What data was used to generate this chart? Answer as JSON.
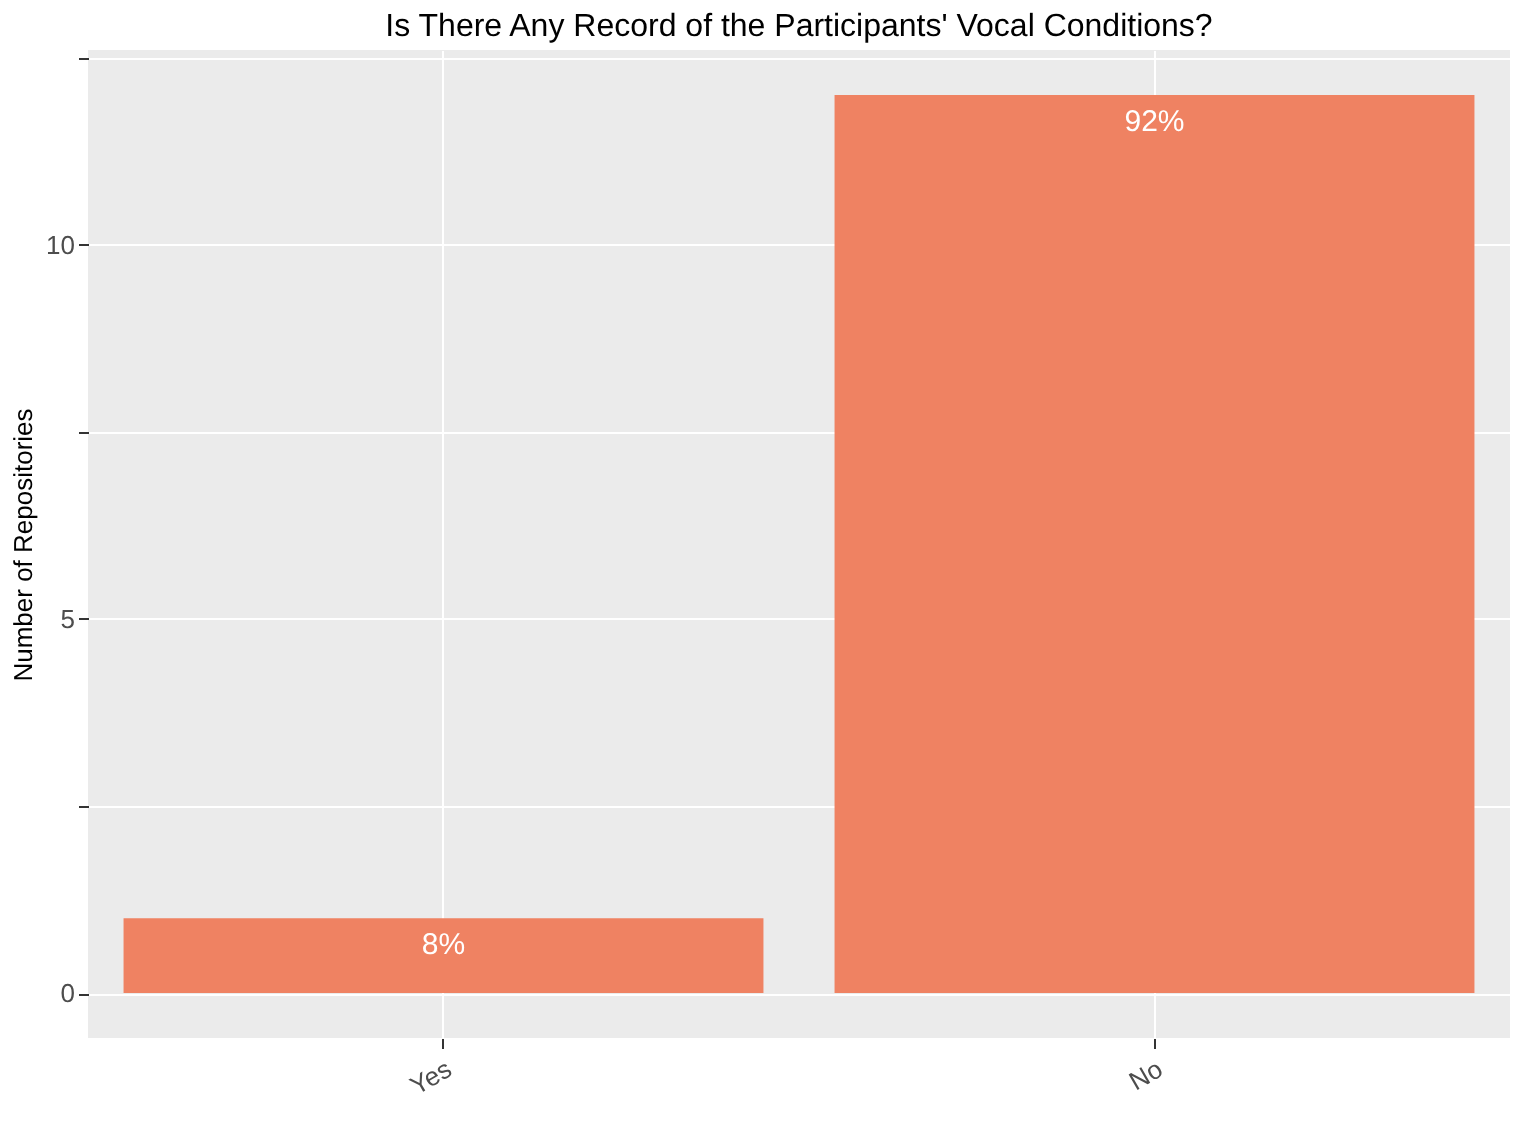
{
  "chart_data": {
    "type": "bar",
    "title": "Is There Any Record of the Participants' Vocal Conditions?",
    "ylabel": "Number of Repositories",
    "categories": [
      "Yes",
      "No"
    ],
    "values": [
      1,
      12
    ],
    "color": "#ef8262",
    "annotations": [
      {
        "text": "8%",
        "x": "Yes",
        "y": 1
      },
      {
        "text": "92%",
        "x": "No",
        "y": 12
      }
    ],
    "ylim": [
      -0.6,
      12.6
    ],
    "yticks": [
      0,
      {
        "value": 2.5,
        "label": null
      },
      5,
      {
        "value": 7.5,
        "label": null
      },
      10,
      {
        "value": 12.5,
        "label": null
      }
    ],
    "grid": true
  }
}
